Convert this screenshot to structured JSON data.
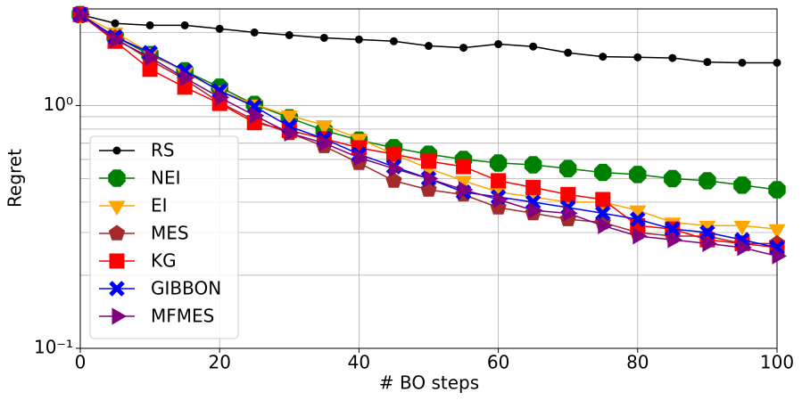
{
  "chart_data": {
    "type": "line",
    "x_label": "# BO steps",
    "y_label": "Regret",
    "x": [
      0,
      5,
      10,
      15,
      20,
      25,
      30,
      35,
      40,
      45,
      50,
      55,
      60,
      65,
      70,
      75,
      80,
      85,
      90,
      95,
      100
    ],
    "xlim": [
      0,
      100
    ],
    "xticks": [
      0,
      20,
      40,
      60,
      80,
      100
    ],
    "ylim": [
      0.1,
      2.5
    ],
    "log_y": true,
    "yticks": [
      {
        "value": 0.1,
        "label": "10⁻¹"
      },
      {
        "value": 1,
        "label": "10⁰"
      }
    ],
    "yminorticks": [
      0.2,
      0.3,
      0.4,
      0.5,
      0.6,
      0.7,
      0.8,
      0.9,
      2
    ],
    "grid": true,
    "legend": "lower left",
    "series": [
      {
        "name": "RS",
        "color": "#000000",
        "marker": "circle",
        "values": [
          2.37,
          2.18,
          2.14,
          2.14,
          2.07,
          2.0,
          1.95,
          1.9,
          1.87,
          1.84,
          1.76,
          1.73,
          1.79,
          1.75,
          1.65,
          1.59,
          1.58,
          1.57,
          1.51,
          1.5,
          1.5
        ]
      },
      {
        "name": "NEI",
        "color": "#008000",
        "marker": "octagon",
        "values": [
          2.37,
          1.92,
          1.62,
          1.39,
          1.19,
          1.01,
          0.89,
          0.79,
          0.72,
          0.67,
          0.63,
          0.6,
          0.58,
          0.57,
          0.55,
          0.53,
          0.52,
          0.5,
          0.49,
          0.47,
          0.45
        ]
      },
      {
        "name": "EI",
        "color": "#ffa500",
        "marker": "triangle-down",
        "values": [
          2.37,
          2.0,
          1.65,
          1.37,
          1.15,
          1.01,
          0.91,
          0.83,
          0.73,
          0.63,
          0.55,
          0.49,
          0.44,
          0.42,
          0.4,
          0.4,
          0.37,
          0.33,
          0.32,
          0.32,
          0.31
        ]
      },
      {
        "name": "MES",
        "color": "#a52a2a",
        "marker": "pentagon",
        "values": [
          2.37,
          1.9,
          1.54,
          1.28,
          1.03,
          0.87,
          0.77,
          0.68,
          0.58,
          0.49,
          0.45,
          0.43,
          0.38,
          0.36,
          0.34,
          0.33,
          0.3,
          0.29,
          0.29,
          0.27,
          0.27
        ]
      },
      {
        "name": "KG",
        "color": "#ff0000",
        "marker": "square",
        "values": [
          2.37,
          1.84,
          1.41,
          1.19,
          1.02,
          0.85,
          0.79,
          0.73,
          0.67,
          0.63,
          0.59,
          0.56,
          0.49,
          0.46,
          0.43,
          0.41,
          0.32,
          0.31,
          0.28,
          0.27,
          0.26
        ]
      },
      {
        "name": "GIBBON",
        "color": "#0000ff",
        "marker": "x",
        "values": [
          2.37,
          1.92,
          1.65,
          1.39,
          1.15,
          0.99,
          0.82,
          0.73,
          0.63,
          0.56,
          0.5,
          0.44,
          0.42,
          0.4,
          0.38,
          0.36,
          0.34,
          0.31,
          0.3,
          0.28,
          0.26
        ]
      },
      {
        "name": "MFMES",
        "color": "#800080",
        "marker": "triangle-right",
        "values": [
          2.37,
          1.87,
          1.58,
          1.3,
          1.08,
          0.91,
          0.77,
          0.7,
          0.61,
          0.55,
          0.5,
          0.45,
          0.41,
          0.37,
          0.36,
          0.32,
          0.29,
          0.28,
          0.27,
          0.26,
          0.24
        ]
      }
    ]
  }
}
